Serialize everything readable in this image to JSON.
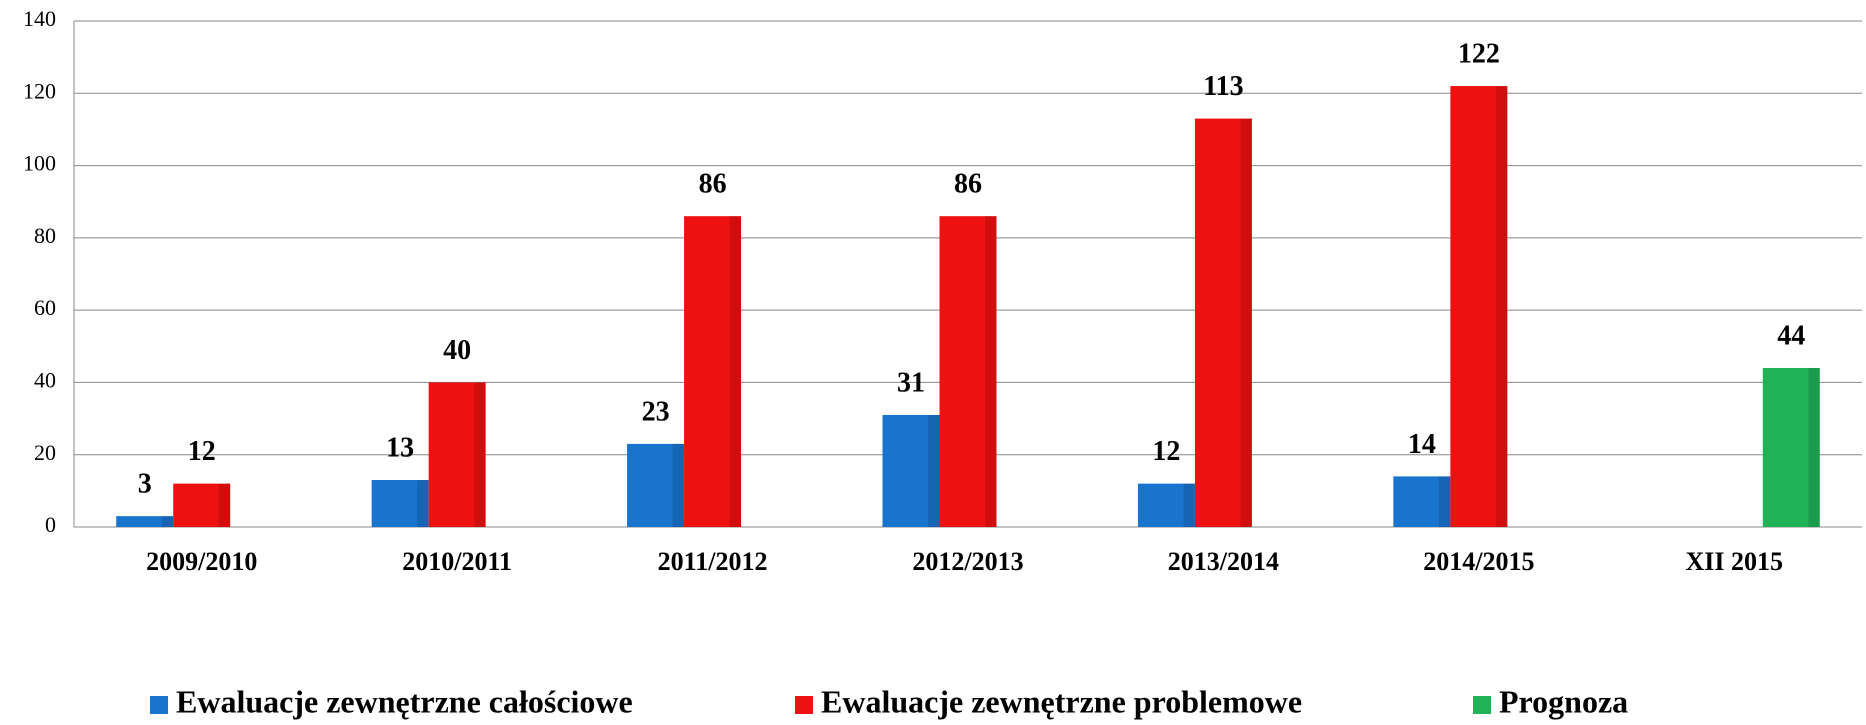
{
  "chart_data": {
    "type": "bar",
    "categories": [
      "2009/2010",
      "2010/2011",
      "2011/2012",
      "2012/2013",
      "2013/2014",
      "2014/2015",
      "XII 2015"
    ],
    "series": [
      {
        "name": "Ewaluacje zewnętrzne całościowe",
        "color": "#1874cd",
        "values": [
          3,
          13,
          23,
          31,
          12,
          14,
          null
        ]
      },
      {
        "name": "Ewaluacje zewnętrzne problemowe",
        "color": "#ee1111",
        "values": [
          12,
          40,
          86,
          86,
          113,
          122,
          null
        ]
      },
      {
        "name": "Prognoza",
        "color": "#1fb257",
        "values": [
          null,
          null,
          null,
          null,
          null,
          null,
          44
        ]
      }
    ],
    "ylim": [
      0,
      140
    ],
    "yticks": [
      0,
      20,
      40,
      60,
      80,
      100,
      120,
      140
    ],
    "grid": true,
    "legend": "bottom"
  }
}
